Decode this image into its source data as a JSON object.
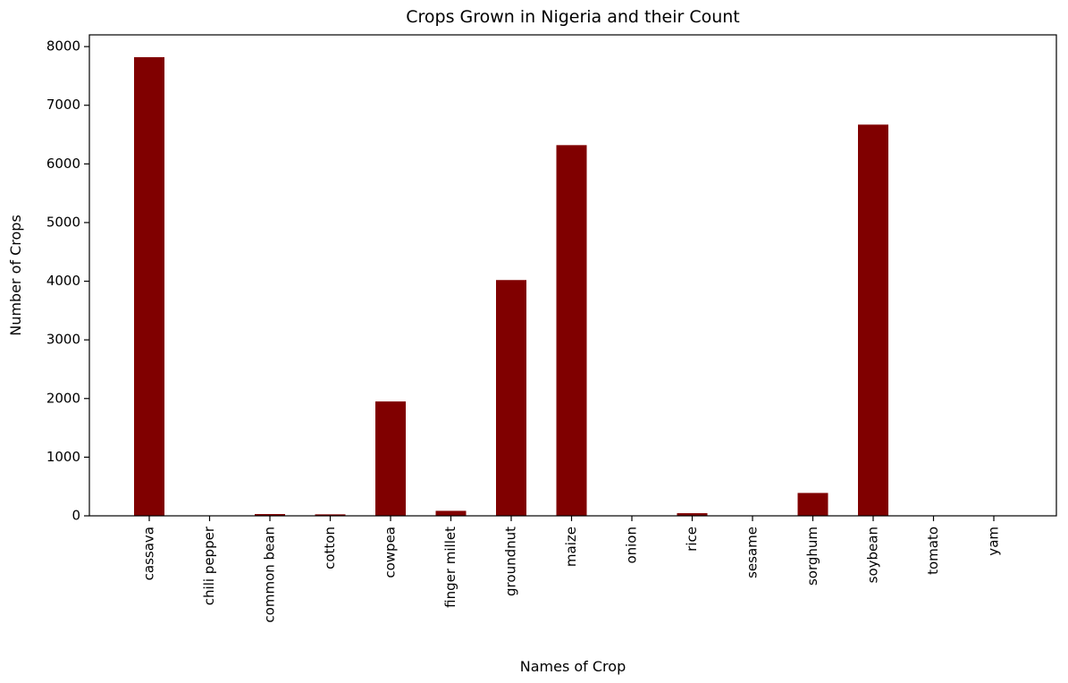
{
  "chart_data": {
    "type": "bar",
    "title": "Crops Grown in Nigeria and their Count",
    "xlabel": "Names of Crop",
    "ylabel": "Number of Crops",
    "categories": [
      "cassava",
      "chili pepper",
      "common bean",
      "cotton",
      "cowpea",
      "finger millet",
      "groundnut",
      "maize",
      "onion",
      "rice",
      "sesame",
      "sorghum",
      "soybean",
      "tomato",
      "yam"
    ],
    "values": [
      7820,
      3,
      30,
      25,
      1950,
      85,
      4020,
      6320,
      3,
      45,
      3,
      390,
      6670,
      3,
      3
    ],
    "yticks": [
      0,
      1000,
      2000,
      3000,
      4000,
      5000,
      6000,
      7000,
      8000
    ],
    "ylim": [
      0,
      8200
    ],
    "grid": false,
    "bar_color": "#800000"
  }
}
